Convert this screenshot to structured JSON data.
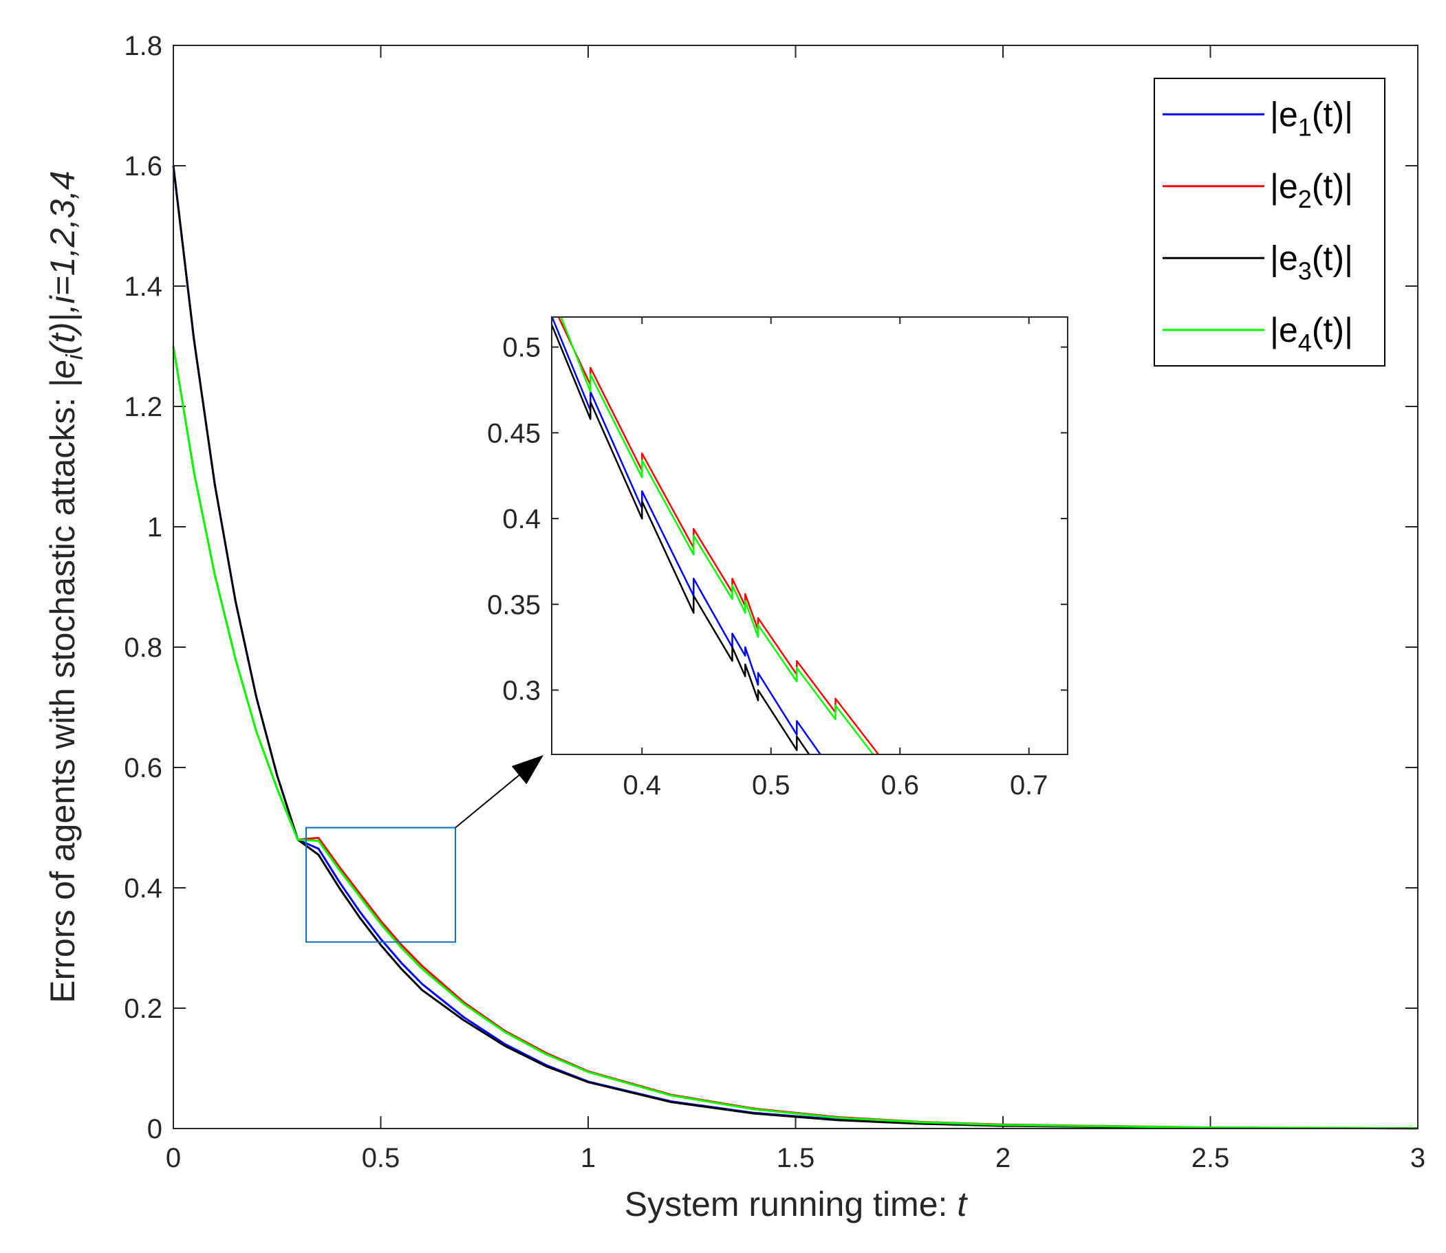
{
  "chart_data": [
    {
      "type": "line",
      "title": "",
      "xlabel": "System running time:  t",
      "xlabel_parts": {
        "main": "System running time:  ",
        "var": "t"
      },
      "ylabel": "Errors of agents with stochastic attacks:  |e_i(t)|,i=1,2,3,4",
      "ylabel_parts": {
        "main": "Errors of agents with stochastic attacks:  ",
        "e": "|e",
        "sub": "i",
        "tail": "(t)|,i=1,2,3,4"
      },
      "xlim": [
        0,
        3
      ],
      "ylim": [
        0,
        1.8
      ],
      "xticks": [
        0,
        0.5,
        1,
        1.5,
        2,
        2.5,
        3
      ],
      "xtick_labels": [
        "0",
        "0.5",
        "1",
        "1.5",
        "2",
        "2.5",
        "3"
      ],
      "yticks": [
        0,
        0.2,
        0.4,
        0.6,
        0.8,
        1,
        1.2,
        1.4,
        1.6,
        1.8
      ],
      "ytick_labels": [
        "0",
        "0.2",
        "0.4",
        "0.6",
        "0.8",
        "1",
        "1.2",
        "1.4",
        "1.6",
        "1.8"
      ],
      "grid": false,
      "legend_position": "top-right",
      "series": [
        {
          "name": "|e1(t)|",
          "legend": {
            "pre": "|e",
            "sub": "1",
            "post": "(t)|"
          },
          "color": "#0000ff",
          "x": [
            0,
            0.05,
            0.1,
            0.15,
            0.2,
            0.25,
            0.3,
            0.35,
            0.4,
            0.45,
            0.5,
            0.55,
            0.6,
            0.7,
            0.8,
            0.9,
            1.0,
            1.2,
            1.4,
            1.6,
            1.8,
            2.0,
            2.5,
            3.0
          ],
          "y": [
            1.6,
            1.31,
            1.07,
            0.876,
            0.717,
            0.587,
            0.48,
            0.465,
            0.41,
            0.36,
            0.315,
            0.275,
            0.24,
            0.185,
            0.14,
            0.105,
            0.078,
            0.045,
            0.026,
            0.015,
            0.009,
            0.005,
            0.0013,
            0.0003
          ]
        },
        {
          "name": "|e2(t)|",
          "legend": {
            "pre": "|e",
            "sub": "2",
            "post": "(t)|"
          },
          "color": "#ff0000",
          "x": [
            0,
            0.05,
            0.1,
            0.15,
            0.2,
            0.25,
            0.3,
            0.35,
            0.4,
            0.45,
            0.5,
            0.55,
            0.6,
            0.7,
            0.8,
            0.9,
            1.0,
            1.2,
            1.4,
            1.6,
            1.8,
            2.0,
            2.5,
            3.0
          ],
          "y": [
            1.3,
            1.09,
            0.92,
            0.78,
            0.66,
            0.565,
            0.48,
            0.483,
            0.435,
            0.39,
            0.345,
            0.305,
            0.27,
            0.21,
            0.162,
            0.125,
            0.095,
            0.056,
            0.033,
            0.019,
            0.011,
            0.0065,
            0.0017,
            0.0004
          ]
        },
        {
          "name": "|e3(t)|",
          "legend": {
            "pre": "|e",
            "sub": "3",
            "post": "(t)|"
          },
          "color": "#000000",
          "x": [
            0,
            0.05,
            0.1,
            0.15,
            0.2,
            0.25,
            0.3,
            0.35,
            0.4,
            0.45,
            0.5,
            0.55,
            0.6,
            0.7,
            0.8,
            0.9,
            1.0,
            1.2,
            1.4,
            1.6,
            1.8,
            2.0,
            2.5,
            3.0
          ],
          "y": [
            1.6,
            1.31,
            1.07,
            0.876,
            0.717,
            0.587,
            0.48,
            0.455,
            0.4,
            0.35,
            0.305,
            0.265,
            0.23,
            0.18,
            0.137,
            0.103,
            0.077,
            0.044,
            0.025,
            0.014,
            0.008,
            0.0045,
            0.0012,
            0.0003
          ]
        },
        {
          "name": "|e4(t)|",
          "legend": {
            "pre": "|e",
            "sub": "4",
            "post": "(t)|"
          },
          "color": "#00ff00",
          "x": [
            0,
            0.05,
            0.1,
            0.15,
            0.2,
            0.25,
            0.3,
            0.35,
            0.4,
            0.45,
            0.5,
            0.55,
            0.6,
            0.7,
            0.8,
            0.9,
            1.0,
            1.2,
            1.4,
            1.6,
            1.8,
            2.0,
            2.5,
            3.0
          ],
          "y": [
            1.3,
            1.09,
            0.92,
            0.78,
            0.66,
            0.565,
            0.48,
            0.478,
            0.43,
            0.385,
            0.34,
            0.3,
            0.265,
            0.207,
            0.16,
            0.123,
            0.094,
            0.055,
            0.032,
            0.018,
            0.0105,
            0.006,
            0.0016,
            0.0004
          ]
        }
      ],
      "zoom_box": {
        "xlim": [
          0.32,
          0.68
        ],
        "ylim": [
          0.31,
          0.5
        ],
        "color": "#0072bd"
      }
    },
    {
      "type": "line",
      "title": "",
      "inset": true,
      "xlim": [
        0.33,
        0.73
      ],
      "ylim": [
        0.2625,
        0.5175
      ],
      "xticks": [
        0.4,
        0.5,
        0.6,
        0.7
      ],
      "xtick_labels": [
        "0.4",
        "0.5",
        "0.6",
        "0.7"
      ],
      "yticks": [
        0.3,
        0.35,
        0.4,
        0.45,
        0.5
      ],
      "ytick_labels": [
        "0.3",
        "0.35",
        "0.4",
        "0.45",
        "0.5"
      ],
      "grid": false,
      "series": [
        {
          "color": "#0000ff",
          "x": [
            0.33,
            0.36,
            0.36,
            0.4,
            0.4,
            0.44,
            0.44,
            0.47,
            0.47,
            0.48,
            0.48,
            0.49,
            0.49,
            0.52,
            0.52,
            0.55,
            0.55,
            0.56
          ],
          "y": [
            0.518,
            0.463,
            0.474,
            0.406,
            0.416,
            0.355,
            0.365,
            0.325,
            0.333,
            0.32,
            0.325,
            0.303,
            0.31,
            0.274,
            0.282,
            0.25,
            0.257,
            0.242
          ]
        },
        {
          "color": "#ff0000",
          "x": [
            0.335,
            0.36,
            0.36,
            0.4,
            0.4,
            0.44,
            0.44,
            0.47,
            0.47,
            0.48,
            0.48,
            0.49,
            0.49,
            0.52,
            0.52,
            0.55,
            0.55,
            0.59,
            0.59,
            0.6
          ],
          "y": [
            0.518,
            0.478,
            0.488,
            0.428,
            0.438,
            0.383,
            0.394,
            0.357,
            0.365,
            0.349,
            0.356,
            0.335,
            0.342,
            0.309,
            0.317,
            0.287,
            0.295,
            0.256,
            0.262,
            0.25
          ]
        },
        {
          "color": "#000000",
          "x": [
            0.33,
            0.36,
            0.36,
            0.4,
            0.4,
            0.44,
            0.44,
            0.47,
            0.47,
            0.48,
            0.48,
            0.49,
            0.49,
            0.52,
            0.52,
            0.55,
            0.55,
            0.56
          ],
          "y": [
            0.513,
            0.458,
            0.468,
            0.4,
            0.41,
            0.345,
            0.355,
            0.317,
            0.325,
            0.308,
            0.315,
            0.294,
            0.3,
            0.265,
            0.273,
            0.24,
            0.247,
            0.235
          ]
        },
        {
          "color": "#00ff00",
          "x": [
            0.337,
            0.36,
            0.36,
            0.4,
            0.4,
            0.44,
            0.44,
            0.47,
            0.47,
            0.48,
            0.48,
            0.49,
            0.49,
            0.52,
            0.52,
            0.55,
            0.55,
            0.59,
            0.59,
            0.6
          ],
          "y": [
            0.518,
            0.474,
            0.484,
            0.424,
            0.434,
            0.379,
            0.39,
            0.353,
            0.361,
            0.345,
            0.352,
            0.331,
            0.338,
            0.305,
            0.313,
            0.283,
            0.291,
            0.252,
            0.258,
            0.246
          ]
        }
      ]
    }
  ]
}
